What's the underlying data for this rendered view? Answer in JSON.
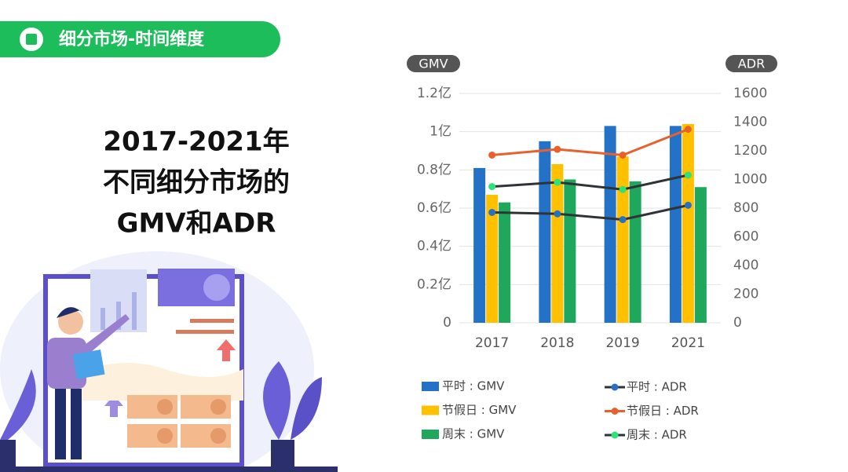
{
  "header": {
    "title": "细分市场-时间维度"
  },
  "slide_title": [
    "2017-2021年",
    "不同细分市场的",
    "GMV和ADR"
  ],
  "chart_data": {
    "type": "bar",
    "y_axis_label": "GMV",
    "y2_axis_label": "ADR",
    "categories": [
      "2017",
      "2018",
      "2019",
      "2021"
    ],
    "ylim": [
      0,
      1.2
    ],
    "yticks": [
      0,
      {
        "value": 0.2,
        "label": "0.2亿"
      },
      {
        "value": 0.4,
        "label": "0.4亿"
      },
      {
        "value": 0.6,
        "label": "0.6亿"
      },
      {
        "value": 0.8,
        "label": "0.8亿"
      },
      {
        "value": 1,
        "label": "1亿"
      },
      {
        "value": 1.2,
        "label": "1.2亿"
      }
    ],
    "y2lim": [
      0,
      1600
    ],
    "y2ticks": [
      0,
      200,
      400,
      600,
      800,
      1000,
      1200,
      1400,
      1600
    ],
    "grid": true,
    "legend": "bottom",
    "series": [
      {
        "name": "平时 : GMV",
        "type": "bar",
        "color": "#2472c8",
        "values": [
          0.81,
          0.95,
          1.03,
          1.03
        ]
      },
      {
        "name": "节假日 : GMV",
        "type": "bar",
        "color": "#ffc000",
        "values": [
          0.67,
          0.83,
          0.87,
          1.04
        ]
      },
      {
        "name": "周末 : GMV",
        "type": "bar",
        "color": "#1fa85c",
        "values": [
          0.63,
          0.75,
          0.74,
          0.71
        ]
      },
      {
        "name": "平时 : ADR",
        "type": "line",
        "axis": "y2",
        "color": "#2f3336",
        "marker_color": "#2472c8",
        "values": [
          770,
          760,
          720,
          820
        ]
      },
      {
        "name": "节假日 : ADR",
        "type": "line",
        "axis": "y2",
        "color": "#e8602c",
        "marker_color": "#e8602c",
        "values": [
          1170,
          1210,
          1170,
          1350
        ]
      },
      {
        "name": "周末 : ADR",
        "type": "line",
        "axis": "y2",
        "color": "#2f3336",
        "marker_color": "#2ee27a",
        "values": [
          950,
          980,
          930,
          1030
        ]
      }
    ]
  }
}
